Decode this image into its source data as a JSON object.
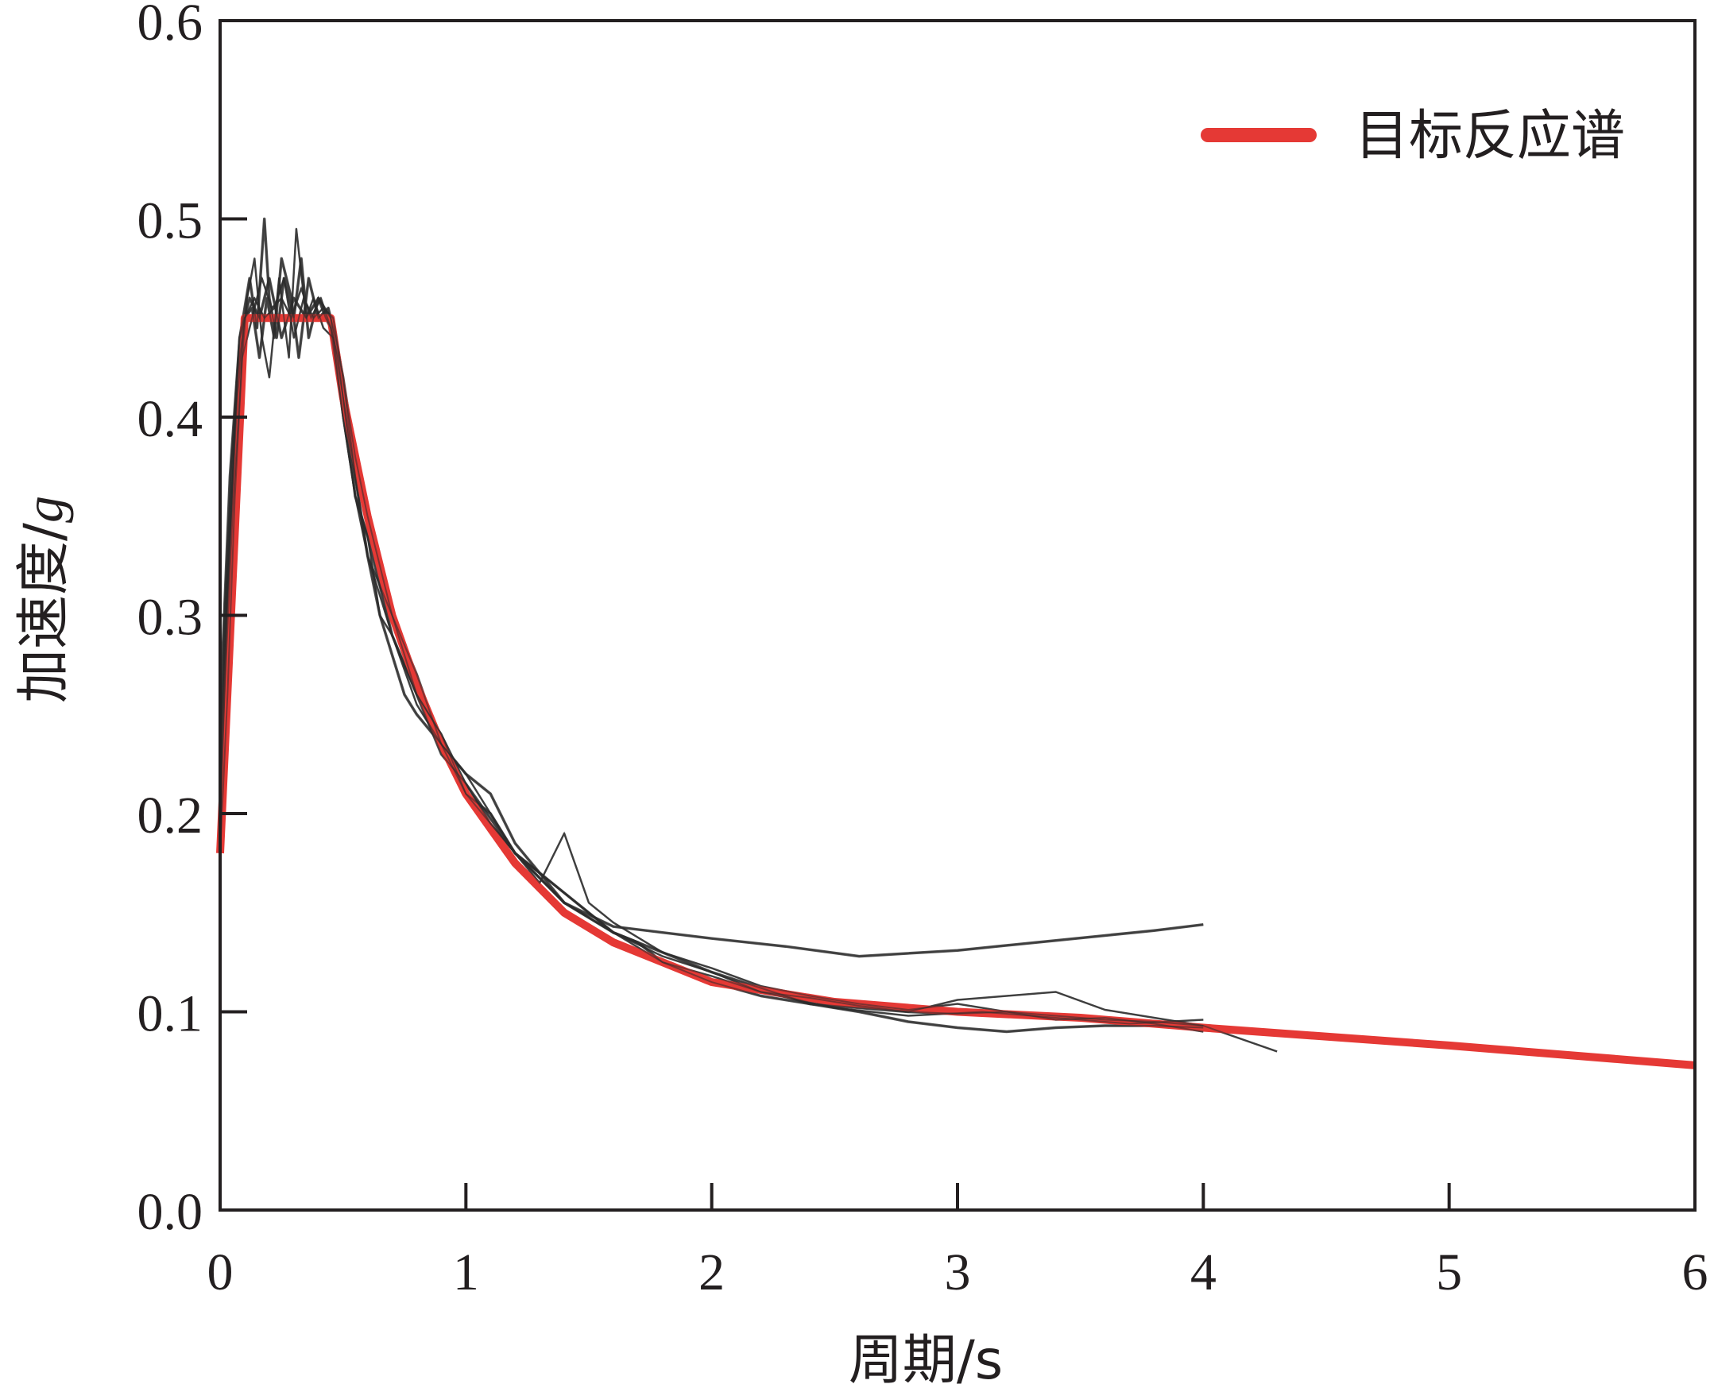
{
  "chart_data": {
    "type": "line",
    "xlabel": "周期/s",
    "ylabel_main": "加速度/",
    "ylabel_unit": "g",
    "xlim": [
      0,
      6
    ],
    "ylim": [
      0,
      0.6
    ],
    "x_ticks": [
      "0",
      "1",
      "2",
      "3",
      "4",
      "5",
      "6"
    ],
    "y_ticks": [
      "0.0",
      "0.1",
      "0.2",
      "0.3",
      "0.4",
      "0.5",
      "0.6"
    ],
    "legend": {
      "position": "top-right",
      "label": "目标反应谱"
    },
    "grid": false,
    "colors": {
      "target": "#e53935",
      "records": "#2b2b2b",
      "frame": "#231f20"
    },
    "series": [
      {
        "name": "目标反应谱",
        "color": "#e53935",
        "x": [
          0,
          0.1,
          0.45,
          0.5,
          0.6,
          0.7,
          0.8,
          0.9,
          1.0,
          1.2,
          1.4,
          1.6,
          1.8,
          2.0,
          2.5,
          3.0,
          3.5,
          4.0,
          5.0,
          6.0
        ],
        "y": [
          0.18,
          0.45,
          0.45,
          0.41,
          0.35,
          0.3,
          0.265,
          0.235,
          0.21,
          0.175,
          0.15,
          0.135,
          0.125,
          0.115,
          0.105,
          0.1,
          0.097,
          0.092,
          0.083,
          0.073
        ]
      }
    ],
    "records": [
      {
        "x": [
          0,
          0.02,
          0.05,
          0.08,
          0.1,
          0.12,
          0.15,
          0.18,
          0.2,
          0.23,
          0.26,
          0.3,
          0.33,
          0.36,
          0.4,
          0.43,
          0.45,
          0.48,
          0.5,
          0.55,
          0.6,
          0.65,
          0.7,
          0.75,
          0.8,
          0.9,
          1.0,
          1.1,
          1.2,
          1.3,
          1.4,
          1.5,
          1.6,
          1.7,
          1.8,
          1.9,
          2.0,
          2.2,
          2.4,
          2.6,
          2.8,
          3.0,
          3.2,
          3.4,
          3.6,
          3.8,
          4.0
        ],
        "y": [
          0.2,
          0.3,
          0.38,
          0.44,
          0.455,
          0.47,
          0.445,
          0.5,
          0.46,
          0.44,
          0.47,
          0.45,
          0.48,
          0.44,
          0.46,
          0.45,
          0.445,
          0.43,
          0.41,
          0.37,
          0.33,
          0.3,
          0.28,
          0.26,
          0.25,
          0.235,
          0.21,
          0.2,
          0.18,
          0.17,
          0.16,
          0.15,
          0.14,
          0.135,
          0.125,
          0.12,
          0.115,
          0.108,
          0.104,
          0.102,
          0.1,
          0.099,
          0.1,
          0.098,
          0.096,
          0.095,
          0.093
        ]
      },
      {
        "x": [
          0,
          0.03,
          0.06,
          0.09,
          0.11,
          0.14,
          0.17,
          0.2,
          0.24,
          0.28,
          0.31,
          0.35,
          0.38,
          0.42,
          0.46,
          0.5,
          0.55,
          0.6,
          0.65,
          0.7,
          0.8,
          0.9,
          1.0,
          1.1,
          1.2,
          1.3,
          1.4,
          1.5,
          1.6,
          1.8,
          2.0,
          2.2,
          2.4,
          2.6,
          2.8,
          3.0,
          3.2,
          3.4,
          3.6,
          3.8,
          4.0
        ],
        "y": [
          0.18,
          0.26,
          0.36,
          0.43,
          0.46,
          0.48,
          0.44,
          0.42,
          0.47,
          0.43,
          0.495,
          0.45,
          0.46,
          0.445,
          0.44,
          0.4,
          0.36,
          0.34,
          0.3,
          0.29,
          0.26,
          0.24,
          0.215,
          0.195,
          0.18,
          0.165,
          0.19,
          0.155,
          0.145,
          0.13,
          0.122,
          0.113,
          0.108,
          0.104,
          0.101,
          0.104,
          0.1,
          0.096,
          0.097,
          0.094,
          0.09
        ]
      },
      {
        "x": [
          0,
          0.04,
          0.07,
          0.1,
          0.13,
          0.16,
          0.19,
          0.22,
          0.25,
          0.29,
          0.32,
          0.36,
          0.4,
          0.44,
          0.47,
          0.5,
          0.55,
          0.6,
          0.7,
          0.8,
          0.9,
          1.0,
          1.1,
          1.2,
          1.4,
          1.6,
          1.8,
          2.0,
          2.2,
          2.4,
          2.6,
          2.8,
          3.0,
          3.2,
          3.4,
          3.6,
          3.8,
          4.0
        ],
        "y": [
          0.22,
          0.34,
          0.41,
          0.45,
          0.455,
          0.43,
          0.46,
          0.44,
          0.48,
          0.46,
          0.43,
          0.47,
          0.45,
          0.455,
          0.44,
          0.42,
          0.38,
          0.35,
          0.3,
          0.27,
          0.235,
          0.22,
          0.21,
          0.185,
          0.155,
          0.14,
          0.13,
          0.12,
          0.112,
          0.104,
          0.1,
          0.095,
          0.092,
          0.09,
          0.092,
          0.093,
          0.093,
          0.092
        ]
      },
      {
        "x": [
          0,
          0.03,
          0.07,
          0.1,
          0.14,
          0.18,
          0.22,
          0.26,
          0.3,
          0.34,
          0.38,
          0.42,
          0.46,
          0.5,
          0.55,
          0.6,
          0.65,
          0.7,
          0.8,
          0.9,
          1.0,
          1.2,
          1.4,
          1.6,
          1.8,
          2.0,
          2.2,
          2.4,
          2.6,
          2.8,
          3.0,
          3.2,
          3.4,
          3.6,
          3.8,
          4.0,
          4.3
        ],
        "y": [
          0.19,
          0.31,
          0.42,
          0.45,
          0.46,
          0.45,
          0.455,
          0.47,
          0.44,
          0.46,
          0.45,
          0.455,
          0.45,
          0.42,
          0.37,
          0.33,
          0.31,
          0.29,
          0.255,
          0.235,
          0.22,
          0.18,
          0.155,
          0.14,
          0.125,
          0.118,
          0.11,
          0.107,
          0.103,
          0.1,
          0.106,
          0.108,
          0.11,
          0.101,
          0.097,
          0.093,
          0.08
        ]
      },
      {
        "x": [
          0,
          0.04,
          0.08,
          0.12,
          0.16,
          0.2,
          0.25,
          0.3,
          0.35,
          0.4,
          0.45,
          0.5,
          0.55,
          0.6,
          0.7,
          0.8,
          0.9,
          1.0,
          1.2,
          1.4,
          1.6,
          1.8,
          2.0,
          2.3,
          2.6,
          3.0,
          3.4,
          3.8,
          4.0
        ],
        "y": [
          0.25,
          0.37,
          0.44,
          0.46,
          0.45,
          0.47,
          0.44,
          0.46,
          0.45,
          0.46,
          0.45,
          0.41,
          0.36,
          0.34,
          0.29,
          0.26,
          0.23,
          0.215,
          0.18,
          0.155,
          0.143,
          0.14,
          0.137,
          0.133,
          0.128,
          0.131,
          0.136,
          0.141,
          0.144
        ]
      },
      {
        "x": [
          0,
          0.05,
          0.09,
          0.13,
          0.17,
          0.21,
          0.25,
          0.29,
          0.33,
          0.37,
          0.41,
          0.45,
          0.5,
          0.55,
          0.6,
          0.7,
          0.8,
          0.9,
          1.0,
          1.2,
          1.4,
          1.6,
          1.8,
          2.0,
          2.2,
          2.5,
          2.8,
          3.1,
          3.4,
          3.7,
          4.0
        ],
        "y": [
          0.21,
          0.35,
          0.43,
          0.45,
          0.47,
          0.455,
          0.46,
          0.45,
          0.465,
          0.45,
          0.46,
          0.445,
          0.4,
          0.36,
          0.33,
          0.3,
          0.26,
          0.24,
          0.21,
          0.18,
          0.16,
          0.14,
          0.128,
          0.12,
          0.11,
          0.102,
          0.098,
          0.1,
          0.097,
          0.094,
          0.096
        ]
      }
    ]
  }
}
